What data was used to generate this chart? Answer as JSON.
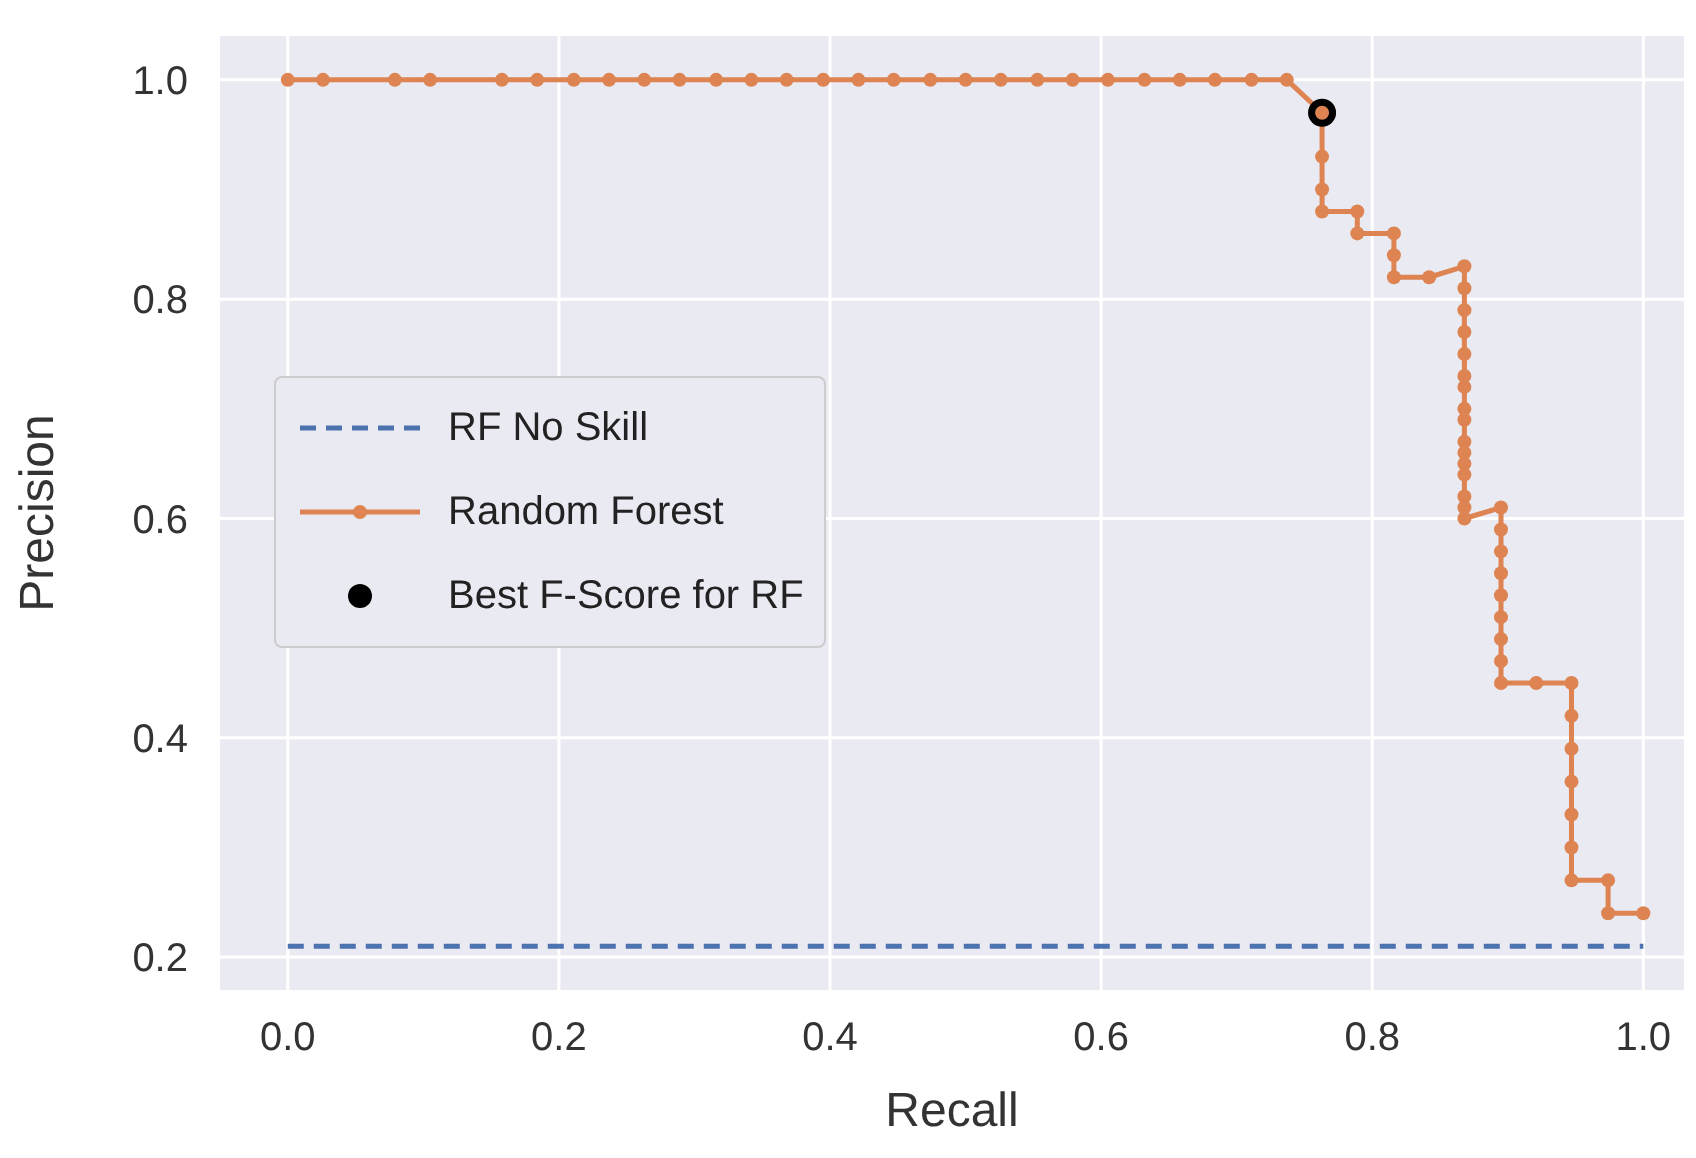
{
  "chart_data": {
    "type": "line",
    "xlabel": "Recall",
    "ylabel": "Precision",
    "xlim": [
      -0.05,
      1.03
    ],
    "ylim": [
      0.17,
      1.04
    ],
    "xticks": [
      {
        "value": 0,
        "label": "0.0"
      },
      {
        "value": 0.2,
        "label": "0.2"
      },
      {
        "value": 0.4,
        "label": "0.4"
      },
      {
        "value": 0.6,
        "label": "0.6"
      },
      {
        "value": 0.8,
        "label": "0.8"
      },
      {
        "value": 1,
        "label": "1.0"
      }
    ],
    "yticks": [
      {
        "value": 0.2,
        "label": "0.2"
      },
      {
        "value": 0.4,
        "label": "0.4"
      },
      {
        "value": 0.6,
        "label": "0.6"
      },
      {
        "value": 0.8,
        "label": "0.8"
      },
      {
        "value": 1,
        "label": "1.0"
      }
    ],
    "grid": true,
    "legend": "left",
    "series": [
      {
        "name": "RF No Skill",
        "color": "#4c72b0",
        "line_style": "dashed",
        "marker": "none",
        "x": [
          0,
          1
        ],
        "values": [
          0.21,
          0.21
        ]
      },
      {
        "name": "Random Forest",
        "color": "#dd8452",
        "line_style": "solid",
        "marker": "circle",
        "x": [
          0,
          0.026,
          0.079,
          0.105,
          0.158,
          0.184,
          0.211,
          0.237,
          0.263,
          0.289,
          0.316,
          0.342,
          0.368,
          0.395,
          0.421,
          0.447,
          0.474,
          0.5,
          0.526,
          0.553,
          0.579,
          0.605,
          0.632,
          0.658,
          0.684,
          0.711,
          0.737,
          0.763,
          0.763,
          0.763,
          0.763,
          0.789,
          0.789,
          0.816,
          0.816,
          0.816,
          0.842,
          0.868,
          0.868,
          0.868,
          0.868,
          0.868,
          0.868,
          0.868,
          0.868,
          0.868,
          0.868,
          0.868,
          0.868,
          0.868,
          0.868,
          0.868,
          0.868,
          0.895,
          0.895,
          0.895,
          0.895,
          0.895,
          0.895,
          0.895,
          0.895,
          0.895,
          0.921,
          0.947,
          0.947,
          0.947,
          0.947,
          0.947,
          0.947,
          0.947,
          0.974,
          0.974,
          1
        ],
        "values": [
          1,
          1,
          1,
          1,
          1,
          1,
          1,
          1,
          1,
          1,
          1,
          1,
          1,
          1,
          1,
          1,
          1,
          1,
          1,
          1,
          1,
          1,
          1,
          1,
          1,
          1,
          1,
          0.97,
          0.93,
          0.9,
          0.88,
          0.88,
          0.86,
          0.86,
          0.84,
          0.82,
          0.82,
          0.83,
          0.81,
          0.79,
          0.77,
          0.75,
          0.73,
          0.72,
          0.7,
          0.69,
          0.67,
          0.66,
          0.65,
          0.64,
          0.62,
          0.61,
          0.6,
          0.61,
          0.59,
          0.57,
          0.55,
          0.53,
          0.51,
          0.49,
          0.47,
          0.45,
          0.45,
          0.45,
          0.42,
          0.39,
          0.36,
          0.33,
          0.3,
          0.27,
          0.27,
          0.24,
          0.24
        ]
      },
      {
        "name": "Best F-Score for RF",
        "type": "scatter",
        "color": "#000000",
        "marker": "circle",
        "x": [
          0.763
        ],
        "values": [
          0.97
        ]
      }
    ]
  }
}
